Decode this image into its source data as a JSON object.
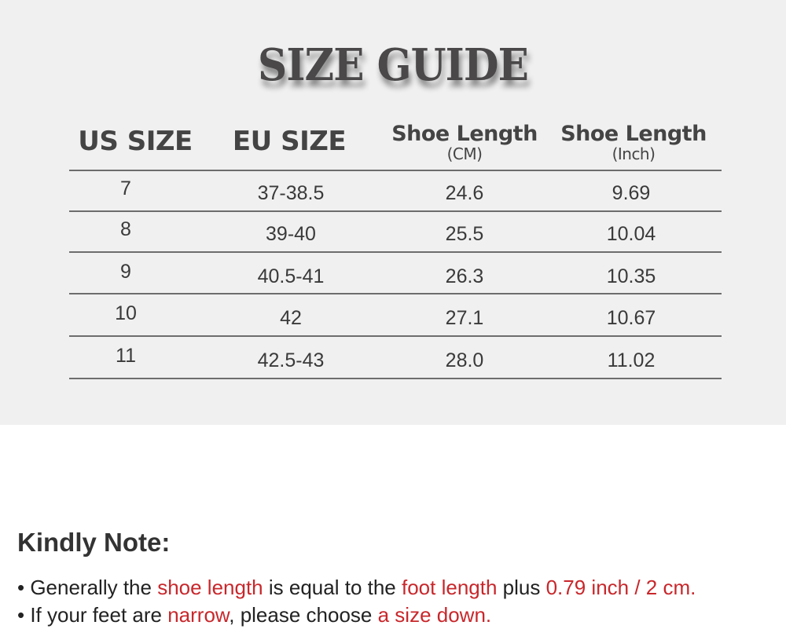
{
  "title": "SIZE GUIDE",
  "headers": [
    {
      "label": "US SIZE",
      "sub": ""
    },
    {
      "label": "EU SIZE",
      "sub": ""
    },
    {
      "label": "Shoe Length",
      "sub": "(CM)"
    },
    {
      "label": "Shoe Length",
      "sub": "(Inch)"
    }
  ],
  "rows": [
    [
      "7",
      "37-38.5",
      "24.6",
      "9.69"
    ],
    [
      "8",
      "39-40",
      "25.5",
      "10.04"
    ],
    [
      "9",
      "40.5-41",
      "26.3",
      "10.35"
    ],
    [
      "10",
      "42",
      "27.1",
      "10.67"
    ],
    [
      "11",
      "42.5-43",
      "28.0",
      "11.02"
    ]
  ],
  "note": {
    "title": "Kindly Note:",
    "lines": [
      [
        {
          "t": "• Generally the ",
          "hl": false
        },
        {
          "t": "shoe length",
          "hl": true
        },
        {
          "t": " is equal to the ",
          "hl": false
        },
        {
          "t": "foot length",
          "hl": true
        },
        {
          "t": " plus ",
          "hl": false
        },
        {
          "t": "0.79 inch / 2 cm.",
          "hl": true
        }
      ],
      [
        {
          "t": "• If your feet are ",
          "hl": false
        },
        {
          "t": "narrow",
          "hl": true
        },
        {
          "t": ", please choose ",
          "hl": false
        },
        {
          "t": "a size down.",
          "hl": true
        }
      ]
    ]
  },
  "colors": {
    "highlight": "#c8272b",
    "panel": "#f0f0f0",
    "text": "#3a3a3a"
  }
}
